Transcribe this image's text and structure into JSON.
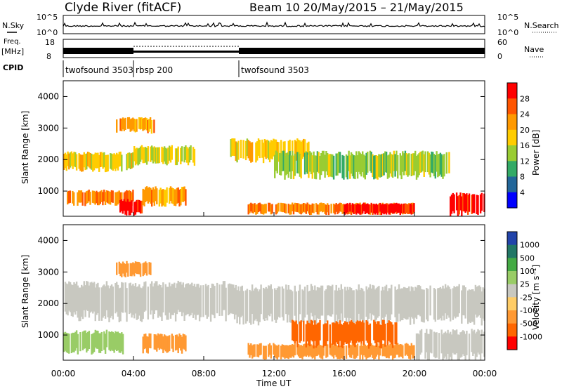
{
  "header": {
    "station": "Clyde River (fitACF)",
    "beam_and_dates": "Beam 10 20/May/2015 – 21/May/2015"
  },
  "noise_panel": {
    "left_label": "N.Sky",
    "right_label": "N.Search",
    "left_ticks": [
      "10^5",
      "10^0"
    ],
    "right_ticks": [
      "10^5",
      "10^0"
    ]
  },
  "freq_panel": {
    "left_label_1": "Freq.",
    "left_label_2": "[MHz]",
    "left_ticks": [
      "18",
      "8"
    ],
    "right_label": "Nave",
    "right_ticks": [
      "60",
      "0"
    ]
  },
  "cpid_panel": {
    "label": "CPID",
    "segments": [
      {
        "name": "twofsound 3503",
        "start_h": 0,
        "end_h": 4
      },
      {
        "name": "rbsp 200",
        "start_h": 4,
        "end_h": 10
      },
      {
        "name": "twofsound 3503",
        "start_h": 10,
        "end_h": 24
      }
    ]
  },
  "x_axis": {
    "label": "Time UT",
    "ticks": [
      "00:00",
      "04:00",
      "08:00",
      "12:00",
      "16:00",
      "20:00",
      "00:00"
    ],
    "tick_hours": [
      0,
      4,
      8,
      12,
      16,
      20,
      24
    ]
  },
  "power_panel": {
    "ylabel": "Slant Range [km]",
    "yticks": [
      1000,
      2000,
      3000,
      4000
    ],
    "colorbar_label": "Power [dB]",
    "colorbar_ticks": [
      "28",
      "24",
      "20",
      "16",
      "12",
      "8",
      "4"
    ],
    "colors": [
      "#ff0000",
      "#ff5500",
      "#ff9900",
      "#ffcc00",
      "#99cc33",
      "#33aa66",
      "#226699",
      "#0000ff"
    ]
  },
  "velocity_panel": {
    "ylabel": "Slant Range [km]",
    "yticks": [
      1000,
      2000,
      3000,
      4000
    ],
    "colorbar_label": "Velocity [m s⁻¹]",
    "colorbar_ticks": [
      "1000",
      "500",
      "100",
      "25",
      "-25",
      "-100",
      "-500",
      "-1000"
    ],
    "colors": [
      "#2244aa",
      "#227766",
      "#44aa44",
      "#99cc66",
      "#c8c8c0",
      "#ffcc66",
      "#ff9933",
      "#ff6600",
      "#ff0000"
    ]
  },
  "chart_data": [
    {
      "type": "heatmap",
      "title": "Power",
      "xlabel": "Time UT",
      "ylabel": "Slant Range [km]",
      "xlim": [
        0,
        24
      ],
      "ylim": [
        200,
        4500
      ],
      "colorbar": "Power [dB]",
      "bands": [
        {
          "t0": 0.0,
          "t1": 4.0,
          "r0": 1700,
          "r1": 2200,
          "value": 16
        },
        {
          "t0": 0.2,
          "t1": 4.0,
          "r0": 600,
          "r1": 1000,
          "value": 22
        },
        {
          "t0": 3.2,
          "t1": 4.5,
          "r0": 300,
          "r1": 700,
          "value": 28
        },
        {
          "t0": 3.0,
          "t1": 5.2,
          "r0": 2900,
          "r1": 3300,
          "value": 20
        },
        {
          "t0": 4.0,
          "t1": 7.5,
          "r0": 1900,
          "r1": 2400,
          "value": 14
        },
        {
          "t0": 4.5,
          "t1": 7.0,
          "r0": 600,
          "r1": 1100,
          "value": 20
        },
        {
          "t0": 9.5,
          "t1": 14.0,
          "r0": 2000,
          "r1": 2600,
          "value": 16
        },
        {
          "t0": 10.5,
          "t1": 20.0,
          "r0": 300,
          "r1": 600,
          "value": 22
        },
        {
          "t0": 16.0,
          "t1": 20.0,
          "r0": 300,
          "r1": 600,
          "value": 28
        },
        {
          "t0": 22.0,
          "t1": 24.0,
          "r0": 300,
          "r1": 900,
          "value": 28
        },
        {
          "t0": 12.0,
          "t1": 22.0,
          "r0": 1500,
          "r1": 2200,
          "value": 12
        }
      ]
    },
    {
      "type": "heatmap",
      "title": "Velocity",
      "xlabel": "Time UT",
      "ylabel": "Slant Range [km]",
      "xlim": [
        0,
        24
      ],
      "ylim": [
        200,
        4500
      ],
      "colorbar": "Velocity [m s-1]",
      "bands": [
        {
          "t0": 0.0,
          "t1": 9.5,
          "r0": 1600,
          "r1": 2600,
          "value": 0
        },
        {
          "t0": 9.5,
          "t1": 24.0,
          "r0": 1500,
          "r1": 2500,
          "value": 0
        },
        {
          "t0": 4.5,
          "t1": 7.0,
          "r0": 500,
          "r1": 1000,
          "value": -300
        },
        {
          "t0": 3.0,
          "t1": 5.0,
          "r0": 2900,
          "r1": 3300,
          "value": -200
        },
        {
          "t0": 10.5,
          "t1": 20.0,
          "r0": 300,
          "r1": 700,
          "value": -300
        },
        {
          "t0": 13.0,
          "t1": 19.0,
          "r0": 700,
          "r1": 1400,
          "value": -600
        },
        {
          "t0": 0.0,
          "t1": 3.5,
          "r0": 500,
          "r1": 1100,
          "value": 50
        },
        {
          "t0": 20.0,
          "t1": 24.0,
          "r0": 300,
          "r1": 1100,
          "value": 0
        }
      ]
    }
  ]
}
